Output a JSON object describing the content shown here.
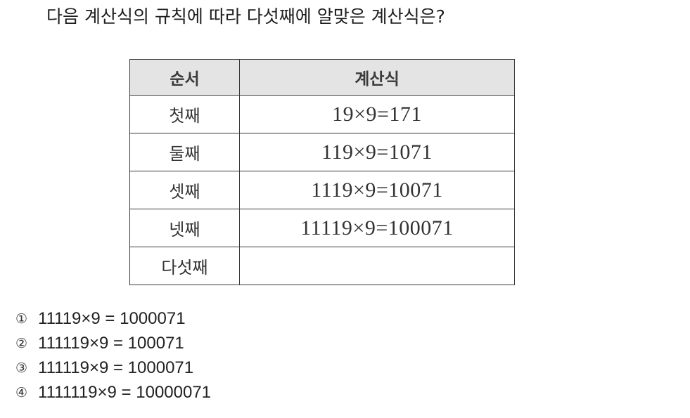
{
  "question": "다음 계산식의 규칙에 따라 다섯째에 알맞은 계산식은?",
  "table": {
    "headers": [
      "순서",
      "계산식"
    ],
    "rows": [
      {
        "label": "첫째",
        "expr": "19×9=171"
      },
      {
        "label": "둘째",
        "expr": "119×9=1071"
      },
      {
        "label": "셋째",
        "expr": "1119×9=10071"
      },
      {
        "label": "넷째",
        "expr": "11119×9=100071"
      },
      {
        "label": "다섯째",
        "expr": ""
      }
    ]
  },
  "choices": [
    {
      "num": "①",
      "text": "11119×9 = 1000071"
    },
    {
      "num": "②",
      "text": "111119×9 = 100071"
    },
    {
      "num": "③",
      "text": "111119×9 = 1000071"
    },
    {
      "num": "④",
      "text": "1111119×9 = 10000071"
    }
  ]
}
